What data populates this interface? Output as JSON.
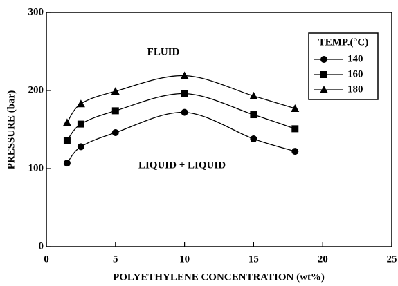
{
  "chart_data": {
    "type": "line",
    "x_label": "POLYETHYLENE CONCENTRATION (wt%)",
    "y_label": "PRESSURE (bar)",
    "annotations": [
      "FLUID",
      "LIQUID + LIQUID"
    ],
    "legend_title": "TEMP.(°C)",
    "legend": "top-right",
    "xlim": [
      0,
      25
    ],
    "xticks": [
      0,
      5,
      10,
      15,
      20,
      25
    ],
    "ylim": [
      0,
      300
    ],
    "yticks": [
      0,
      100,
      200,
      300
    ],
    "x": [
      1.5,
      2.5,
      5,
      10,
      15,
      18
    ],
    "series": [
      {
        "name": "140",
        "color": "#000000",
        "marker": "circle",
        "values": [
          107,
          128,
          146,
          172,
          138,
          122
        ]
      },
      {
        "name": "160",
        "color": "#000000",
        "marker": "square",
        "values": [
          136,
          157,
          174,
          196,
          169,
          151
        ]
      },
      {
        "name": "180",
        "color": "#000000",
        "marker": "triangle",
        "values": [
          159,
          183,
          199,
          219,
          193,
          177
        ]
      }
    ]
  }
}
